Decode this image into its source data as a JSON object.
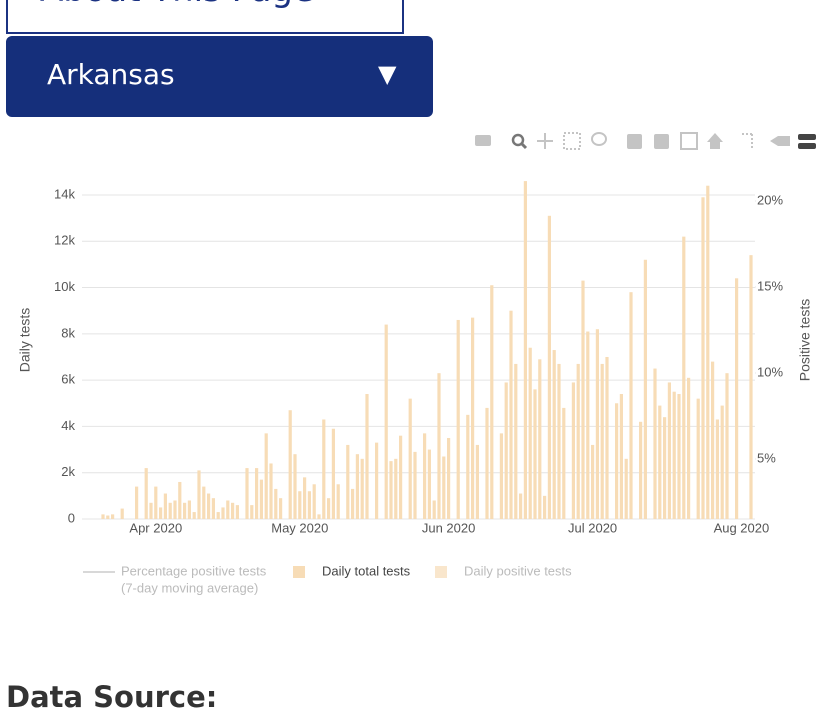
{
  "header": {
    "about_button": "About This Page",
    "state_dropdown": "Arkansas"
  },
  "chart_data": {
    "type": "bar",
    "y_axis_title": "Daily tests",
    "y2_axis_title": "Positive tests",
    "categories": [
      null,
      null,
      null,
      null,
      null,
      null,
      null,
      null,
      null,
      null,
      null,
      "Apr 2020",
      null,
      null,
      null,
      null,
      null,
      null,
      null,
      null,
      null,
      null,
      null,
      null,
      null,
      null,
      null,
      null,
      null,
      null,
      null,
      null,
      null,
      null,
      null,
      null,
      null,
      null,
      null,
      null,
      null,
      "May 2020",
      null,
      null,
      null,
      null,
      null,
      null,
      null,
      null,
      null,
      null,
      null,
      null,
      null,
      null,
      null,
      null,
      null,
      null,
      null,
      null,
      null,
      null,
      null,
      null,
      null,
      null,
      null,
      null,
      null,
      null,
      "Jun 2020",
      null,
      null,
      null,
      null,
      null,
      null,
      null,
      null,
      null,
      null,
      null,
      null,
      null,
      null,
      null,
      null,
      null,
      null,
      null,
      null,
      null,
      null,
      null,
      null,
      null,
      null,
      null,
      null,
      null,
      "Jul 2020",
      null,
      null,
      null,
      null,
      null,
      null,
      null,
      null,
      null,
      null,
      null,
      null,
      null,
      null,
      null,
      null,
      null,
      null,
      null,
      null,
      null,
      null,
      null,
      null,
      null,
      null,
      null,
      null,
      null,
      null,
      "Aug 2020",
      null,
      null
    ],
    "series": [
      {
        "name": "Daily total tests",
        "color": "#f7dcb6",
        "values": [
          200,
          150,
          200,
          0,
          450,
          0,
          0,
          1400,
          0,
          2200,
          700,
          1400,
          500,
          1100,
          700,
          800,
          1600,
          700,
          800,
          300,
          2100,
          1400,
          1100,
          900,
          300,
          500,
          800,
          700,
          600,
          0,
          2200,
          600,
          2200,
          1700,
          3700,
          2400,
          1300,
          900,
          0,
          4700,
          2800,
          1200,
          1800,
          1200,
          1500,
          200,
          4300,
          900,
          3900,
          1500,
          0,
          3200,
          1300,
          2800,
          2600,
          5400,
          0,
          3300,
          0,
          8400,
          2500,
          2600,
          3600,
          0,
          5200,
          2900,
          0,
          3700,
          3000,
          800,
          6300,
          2700,
          3500,
          0,
          8600,
          0,
          4500,
          8700,
          3200,
          0,
          4800,
          10100,
          0,
          3700,
          5900,
          9000,
          6700,
          1100,
          14600,
          7400,
          5600,
          6900,
          1000,
          13100,
          7300,
          6700,
          4800,
          0,
          5900,
          6700,
          10300,
          8100,
          3200,
          8200,
          6700,
          7000,
          0,
          5000,
          5400,
          2600,
          9800,
          0,
          4200,
          11200,
          0,
          6500,
          4900,
          4400,
          5900,
          5500,
          5400,
          12200,
          6100,
          0,
          5200,
          13900,
          14400,
          6800,
          4300,
          4900,
          6300,
          0,
          10400,
          0,
          0,
          11400
        ]
      }
    ],
    "hidden_series": [
      {
        "name": [
          "Percentage positive tests",
          "(7-day moving average)"
        ],
        "symbol": "line",
        "color": "#d8d8d8"
      },
      {
        "name": "Daily positive tests",
        "symbol": "bar",
        "color": "#f9e6cc"
      }
    ],
    "ylim": [
      0,
      14690
    ],
    "yticks": [
      0,
      {
        "value": 2000,
        "label": "2k"
      },
      {
        "value": 4000,
        "label": "4k"
      },
      {
        "value": 6000,
        "label": "6k"
      },
      {
        "value": 8000,
        "label": "8k"
      },
      {
        "value": 10000,
        "label": "10k"
      },
      {
        "value": 12000,
        "label": "12k"
      },
      {
        "value": 14000,
        "label": "14k"
      }
    ],
    "y2lim": [
      1.51,
      21.28
    ],
    "y2ticks": [
      {
        "value": 5,
        "label": "5%"
      },
      {
        "value": 10,
        "label": "10%"
      },
      {
        "value": 15,
        "label": "15%"
      },
      {
        "value": 20,
        "label": "20%"
      }
    ],
    "grid": true
  },
  "footer": {
    "data_source_heading": "Data Source:"
  }
}
